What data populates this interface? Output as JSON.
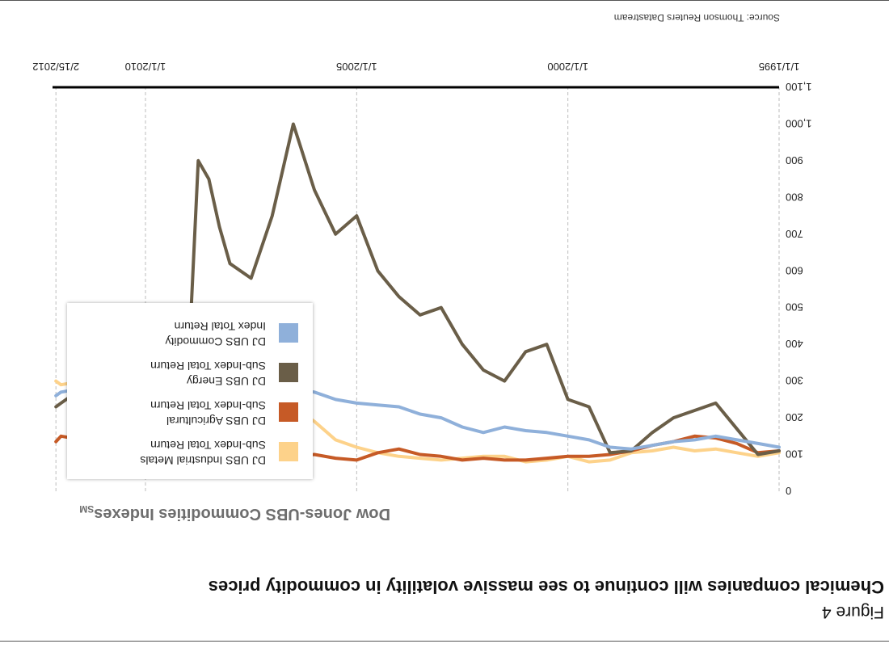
{
  "figure_label": "Figure 4",
  "headline": "Chemical companies will continue to see massive volatility in commodity prices",
  "source": "Source: Thomson Reuters Datastream",
  "colors": {
    "industrial_metals": "#fdd28a",
    "agricultural": "#c65a26",
    "energy": "#6a5e48",
    "commodity": "#8fb0da"
  },
  "chart_data": {
    "type": "line",
    "title": "Dow Jones-UBS Commodities Indexes",
    "title_suffix": "SM",
    "xlabel": "",
    "ylabel": "",
    "x_ticks": [
      "1/1/1995",
      "1/1/2000",
      "1/1/2005",
      "1/1/2010",
      "2/15/2012"
    ],
    "x_tick_years": [
      1995.0,
      2000.0,
      2005.0,
      2010.0,
      2012.12
    ],
    "xlim": [
      1995.0,
      2012.2
    ],
    "y_ticks": [
      "0",
      "100",
      "200",
      "300",
      "400",
      "500",
      "600",
      "700",
      "800",
      "900",
      "1,000",
      "1,100"
    ],
    "ylim": [
      0,
      1100
    ],
    "x": [
      1995.0,
      1995.5,
      1996.0,
      1996.5,
      1997.0,
      1997.5,
      1998.0,
      1998.5,
      1999.0,
      1999.5,
      2000.0,
      2000.5,
      2001.0,
      2001.5,
      2002.0,
      2002.5,
      2003.0,
      2003.5,
      2004.0,
      2004.5,
      2005.0,
      2005.5,
      2006.0,
      2006.5,
      2007.0,
      2007.5,
      2008.0,
      2008.25,
      2008.5,
      2008.75,
      2009.0,
      2009.5,
      2010.0,
      2010.5,
      2011.0,
      2011.5,
      2012.0,
      2012.12
    ],
    "series": [
      {
        "name": "DJ UBS Industrial Metals Sub-Index Total Return",
        "key": "industrial_metals",
        "legend_lines": [
          "DJ UBS Industrial Metals",
          "Sub-Index Total Return"
        ],
        "values": [
          105,
          95,
          105,
          115,
          110,
          120,
          110,
          105,
          85,
          80,
          95,
          85,
          80,
          95,
          95,
          90,
          85,
          90,
          95,
          105,
          120,
          140,
          190,
          230,
          290,
          340,
          300,
          350,
          300,
          250,
          180,
          160,
          220,
          280,
          260,
          300,
          290,
          300
        ]
      },
      {
        "name": "DJ UBS Agricultural Sub-Index Total Return",
        "key": "agricultural",
        "legend_lines": [
          "DJ UBS Agricultural",
          "Sub-Index Total Return"
        ],
        "values": [
          110,
          105,
          130,
          145,
          150,
          135,
          125,
          110,
          100,
          95,
          95,
          90,
          85,
          85,
          90,
          85,
          95,
          100,
          115,
          105,
          85,
          90,
          100,
          95,
          100,
          110,
          150,
          140,
          110,
          100,
          95,
          105,
          110,
          100,
          130,
          140,
          150,
          135
        ]
      },
      {
        "name": "DJ UBS Energy Sub-Index Total Return",
        "key": "energy",
        "legend_lines": [
          "DJ UBS Energy",
          "Sub-Index Total Return"
        ],
        "values": [
          110,
          100,
          170,
          240,
          220,
          200,
          160,
          110,
          105,
          230,
          250,
          400,
          380,
          300,
          330,
          400,
          500,
          480,
          530,
          600,
          750,
          700,
          820,
          1000,
          750,
          580,
          620,
          720,
          850,
          900,
          300,
          270,
          300,
          280,
          260,
          280,
          240,
          230
        ]
      },
      {
        "name": "DJ UBS Commodity Index Total Return",
        "key": "commodity",
        "legend_lines": [
          "DJ UBS Commodity",
          "Index Total Return"
        ],
        "values": [
          120,
          130,
          140,
          150,
          140,
          135,
          125,
          115,
          120,
          140,
          150,
          160,
          165,
          175,
          160,
          175,
          200,
          210,
          230,
          235,
          240,
          250,
          270,
          280,
          290,
          300,
          330,
          355,
          390,
          350,
          220,
          200,
          220,
          240,
          260,
          280,
          270,
          260
        ]
      }
    ]
  }
}
